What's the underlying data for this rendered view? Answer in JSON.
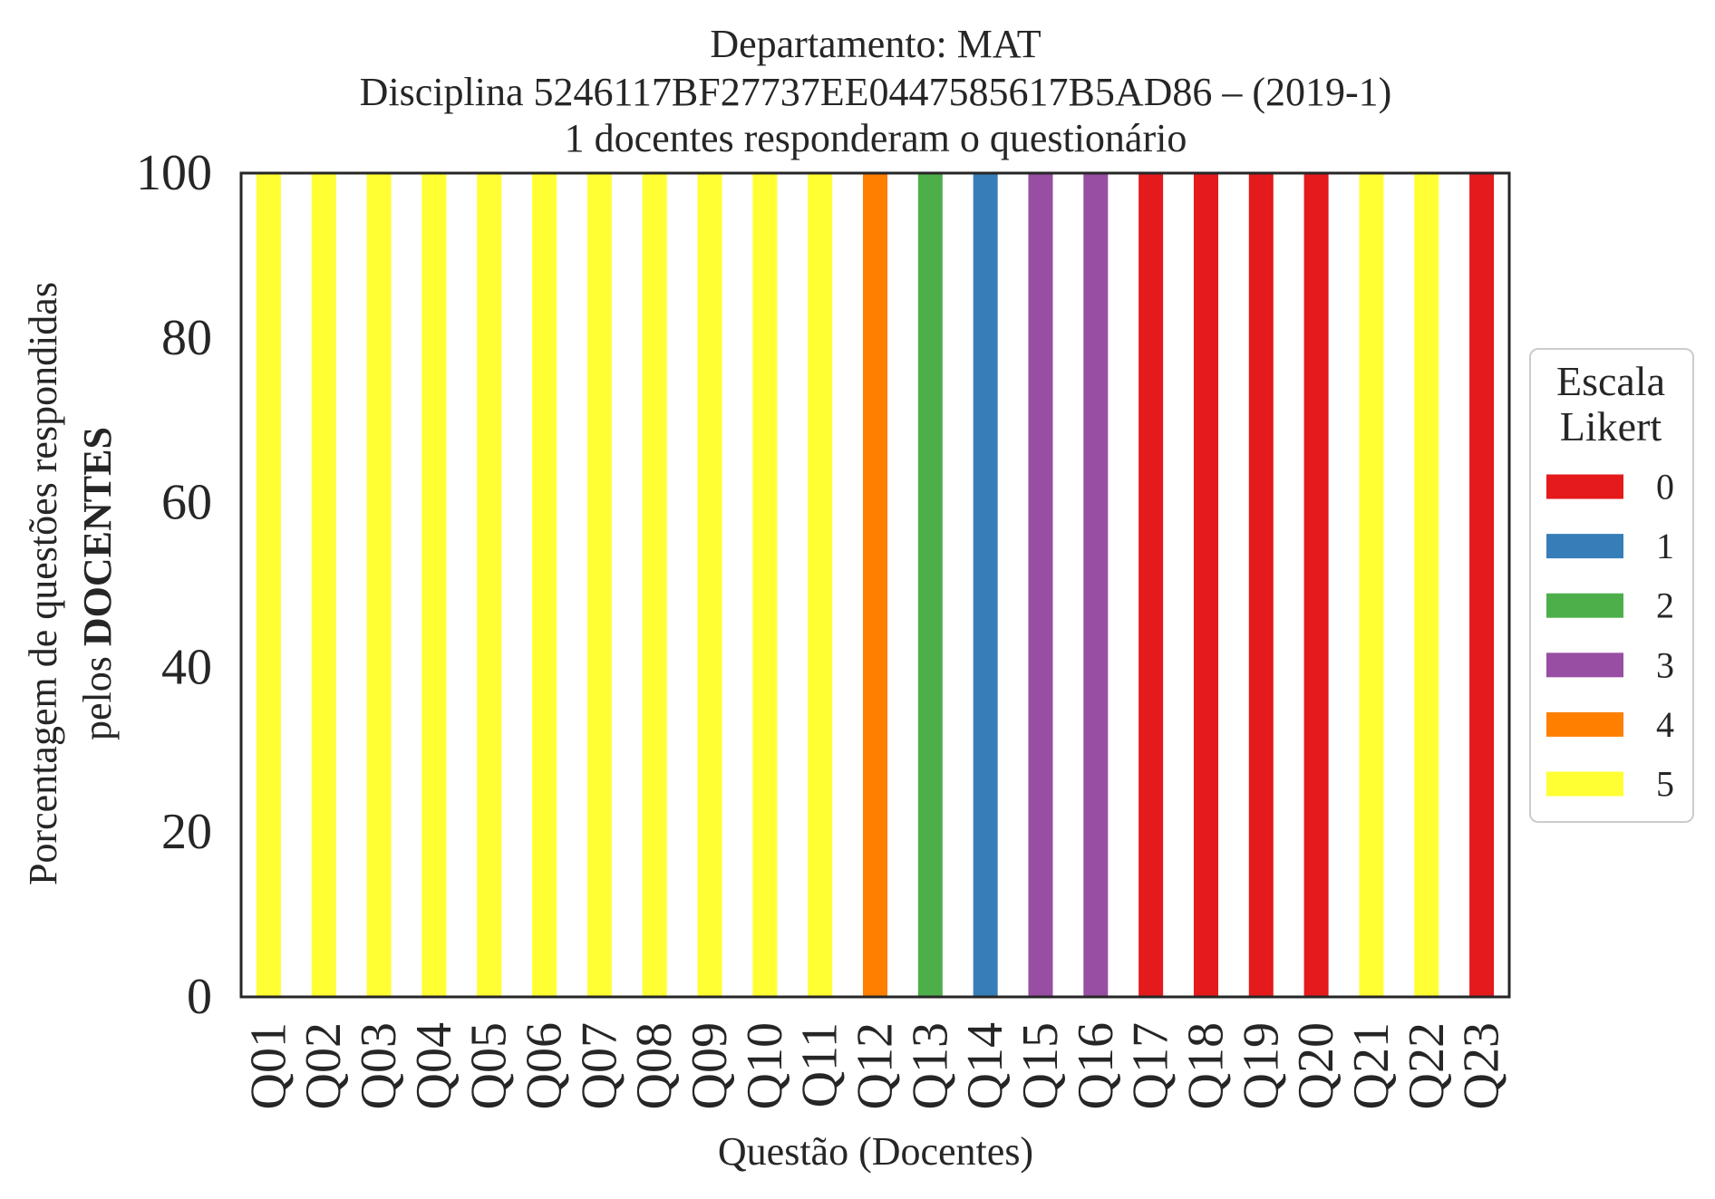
{
  "chart_data": {
    "type": "bar",
    "stacked": true,
    "title": [
      "Departamento: MAT",
      "Disciplina 5246117BF27737EE0447585617B5AD86 – (2019-1)",
      "1 docentes responderam o questionário"
    ],
    "xlabel": "Questão (Docentes)",
    "ylabel": {
      "line1": "Porcentagem de questões respondidas",
      "line2_regular": "pelos",
      "line2_bold": "DOCENTES"
    },
    "ylim": [
      0,
      100
    ],
    "yticks": [
      0,
      20,
      40,
      60,
      80,
      100
    ],
    "grid": false,
    "categories": [
      "Q01",
      "Q02",
      "Q03",
      "Q04",
      "Q05",
      "Q06",
      "Q07",
      "Q08",
      "Q09",
      "Q10",
      "Q11",
      "Q12",
      "Q13",
      "Q14",
      "Q15",
      "Q16",
      "Q17",
      "Q18",
      "Q19",
      "Q20",
      "Q21",
      "Q22",
      "Q23"
    ],
    "legend": {
      "title": [
        "Escala",
        "Likert"
      ],
      "placement": "center-right"
    },
    "series": [
      {
        "name": "0",
        "color": "#e41a1c",
        "values": [
          0,
          0,
          0,
          0,
          0,
          0,
          0,
          0,
          0,
          0,
          0,
          0,
          0,
          0,
          0,
          0,
          100,
          100,
          100,
          100,
          0,
          0,
          100
        ]
      },
      {
        "name": "1",
        "color": "#377eb8",
        "values": [
          0,
          0,
          0,
          0,
          0,
          0,
          0,
          0,
          0,
          0,
          0,
          0,
          0,
          100,
          0,
          0,
          0,
          0,
          0,
          0,
          0,
          0,
          0
        ]
      },
      {
        "name": "2",
        "color": "#4daf4a",
        "values": [
          0,
          0,
          0,
          0,
          0,
          0,
          0,
          0,
          0,
          0,
          0,
          0,
          100,
          0,
          0,
          0,
          0,
          0,
          0,
          0,
          0,
          0,
          0
        ]
      },
      {
        "name": "3",
        "color": "#984ea3",
        "values": [
          0,
          0,
          0,
          0,
          0,
          0,
          0,
          0,
          0,
          0,
          0,
          0,
          0,
          0,
          100,
          100,
          0,
          0,
          0,
          0,
          0,
          0,
          0
        ]
      },
      {
        "name": "4",
        "color": "#ff7f00",
        "values": [
          0,
          0,
          0,
          0,
          0,
          0,
          0,
          0,
          0,
          0,
          0,
          100,
          0,
          0,
          0,
          0,
          0,
          0,
          0,
          0,
          0,
          0,
          0
        ]
      },
      {
        "name": "5",
        "color": "#ffff33",
        "values": [
          100,
          100,
          100,
          100,
          100,
          100,
          100,
          100,
          100,
          100,
          100,
          0,
          0,
          0,
          0,
          0,
          0,
          0,
          0,
          0,
          100,
          100,
          0
        ]
      }
    ]
  }
}
